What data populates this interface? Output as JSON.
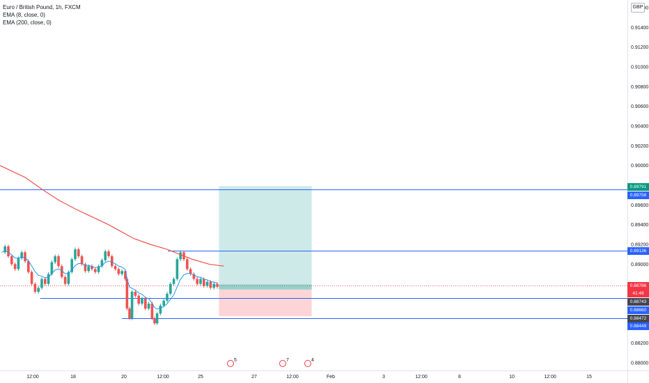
{
  "symbol_title": "Euro / British Pound, 1h, FXCM",
  "indicators": [
    "EMA (8, close, 0)",
    "EMA (200, close, 0)"
  ],
  "currency_badge": "GBP",
  "colors": {
    "up": "#26a69a",
    "down": "#ef5350",
    "ema200": "#ef5350",
    "ema8": "#2196f3",
    "hline": "#2962ff",
    "profit_zone": "#b2dfdb",
    "loss_zone": "#fccbcd",
    "current_price_line": "#ef5350"
  },
  "price_labels": [
    {
      "text": "0.89791",
      "color": "#089981"
    },
    {
      "text": "0.89758",
      "color": "#2962ff"
    },
    {
      "text": "0.89136",
      "color": "#2962ff"
    },
    {
      "text": "0.88786",
      "color": "#f23645"
    },
    {
      "text": "41:49",
      "color": "#f23645"
    },
    {
      "text": "0.88743",
      "color": "#434651"
    },
    {
      "text": "0.88660",
      "color": "#2962ff"
    },
    {
      "text": "0.88472",
      "color": "#434651"
    },
    {
      "text": "0.88449",
      "color": "#2962ff"
    }
  ],
  "event_markers": [
    "5",
    "7",
    "4"
  ],
  "chart_data": {
    "type": "candlestick",
    "title": "Euro / British Pound, 1h, FXCM",
    "y_axis": {
      "ticks": [
        "0.91600",
        "0.91400",
        "0.91200",
        "0.91000",
        "0.90800",
        "0.90600",
        "0.90400",
        "0.90200",
        "0.90000",
        "0.89800",
        "0.89600",
        "0.89400",
        "0.89200",
        "0.89000",
        "0.88800",
        "0.88600",
        "0.88400",
        "0.88200",
        "0.88000"
      ],
      "range": [
        0.8792,
        0.917
      ],
      "position": "right"
    },
    "x_axis": {
      "ticks": [
        "12:00",
        "18",
        "20",
        "12:00",
        "25",
        "27",
        "12:00",
        "Feb",
        "3",
        "12:00",
        "8",
        "10",
        "12:00",
        "15"
      ]
    },
    "ohlc": [],
    "ema_200_points": [
      [
        0,
        0.9
      ],
      [
        3.0,
        0.8988
      ],
      [
        5.0,
        0.8976
      ],
      [
        7.0,
        0.8965
      ],
      [
        9.0,
        0.8956
      ],
      [
        11.0,
        0.8948
      ],
      [
        13.0,
        0.894
      ],
      [
        14.5,
        0.8933
      ],
      [
        16.0,
        0.8926
      ],
      [
        18.0,
        0.892
      ],
      [
        20.0,
        0.8915
      ],
      [
        21.5,
        0.891
      ],
      [
        23.0,
        0.8905
      ],
      [
        25.0,
        0.89
      ],
      [
        26.8,
        0.8898
      ]
    ],
    "horizontal_lines": [
      {
        "price": 0.89758,
        "from_x": 0,
        "to_x": "right-edge"
      },
      {
        "price": 0.89136,
        "from_x": 20.1,
        "to_x": "right-edge"
      },
      {
        "price": 0.8866,
        "from_x": 4.8,
        "to_x": "right-edge"
      },
      {
        "price": 0.88449,
        "from_x": 14.6,
        "to_x": "right-edge"
      }
    ],
    "long_position": {
      "entry": 0.88743,
      "take_profit": 0.89791,
      "stop_loss": 0.88472,
      "from_x": 26.2,
      "to_x": 37.3
    },
    "current_price": 0.88786,
    "legend": {
      "entries": [
        "EMA (8, close, 0)",
        "EMA (200, close, 0)"
      ],
      "position": "top-left"
    },
    "grid": false
  }
}
